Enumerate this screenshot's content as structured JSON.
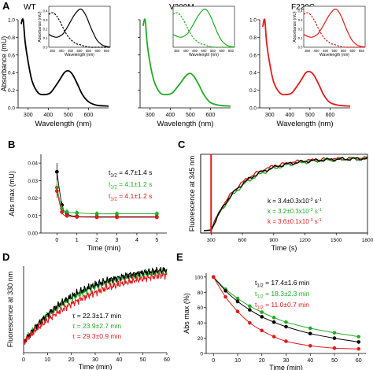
{
  "panels": {
    "A": "A",
    "B": "B",
    "C": "C",
    "D": "D",
    "E": "E"
  },
  "colors": {
    "wt": "#000000",
    "v209m": "#22aa22",
    "f220c": "#e01b1b"
  },
  "chart_data": [
    {
      "id": "A-WT",
      "type": "line",
      "title": "WT",
      "xlabel": "Wavelength (nm)",
      "ylabel": "Absorbance (mU)",
      "xlim": [
        250,
        700
      ],
      "ylim": [
        0,
        1.0
      ],
      "xticks": [
        "300",
        "400",
        "500",
        "600"
      ],
      "yticks": [
        "0.0",
        "0.2",
        "0.4",
        "0.6",
        "0.8",
        "1.0"
      ],
      "series": [
        {
          "x": [
            265,
            275,
            285,
            300,
            320,
            350,
            380,
            410,
            440,
            460,
            480,
            500,
            520,
            545,
            570,
            600,
            640,
            700
          ],
          "y": [
            0.95,
            1.0,
            0.75,
            0.52,
            0.3,
            0.17,
            0.15,
            0.17,
            0.26,
            0.33,
            0.4,
            0.42,
            0.38,
            0.27,
            0.15,
            0.07,
            0.03,
            0.02
          ]
        }
      ],
      "inset": {
        "xlabel": "Wavelength (nm)",
        "ylabel": "Absorbance (mU)",
        "xticks": [
          "350",
          "400",
          "450",
          "500",
          "550",
          "600",
          "650"
        ],
        "yticks": [
          "0.0",
          "0.1",
          "0.2",
          "0.3",
          "0.4"
        ],
        "xlim": [
          330,
          670
        ],
        "ylim": [
          0,
          0.45
        ],
        "solid": {
          "x": [
            330,
            350,
            370,
            390,
            410,
            430,
            450,
            470,
            490,
            505,
            520,
            540,
            560,
            580,
            600,
            630,
            670
          ],
          "y": [
            0.14,
            0.12,
            0.11,
            0.12,
            0.15,
            0.21,
            0.28,
            0.35,
            0.4,
            0.42,
            0.4,
            0.33,
            0.23,
            0.14,
            0.07,
            0.02,
            0.0
          ]
        },
        "dashed": {
          "x": [
            330,
            345,
            360,
            375,
            390,
            405,
            420,
            440,
            460,
            480,
            500,
            530,
            560,
            600,
            670
          ],
          "y": [
            0.36,
            0.38,
            0.37,
            0.34,
            0.29,
            0.23,
            0.17,
            0.11,
            0.07,
            0.04,
            0.03,
            0.01,
            0.0,
            0.0,
            0.0
          ]
        }
      }
    },
    {
      "id": "A-V209M",
      "type": "line",
      "title": "V209M",
      "xlabel": "Wavelength (nm)",
      "ylabel": "",
      "xlim": [
        250,
        700
      ],
      "ylim": [
        0,
        1.0
      ],
      "xticks": [
        "300",
        "400",
        "500",
        "600"
      ],
      "yticks": [],
      "series": [
        {
          "x": [
            265,
            275,
            285,
            300,
            320,
            350,
            380,
            410,
            440,
            460,
            480,
            500,
            520,
            545,
            570,
            600,
            640,
            700
          ],
          "y": [
            0.93,
            1.0,
            0.74,
            0.5,
            0.3,
            0.17,
            0.15,
            0.17,
            0.25,
            0.31,
            0.37,
            0.39,
            0.35,
            0.25,
            0.14,
            0.06,
            0.03,
            0.02
          ]
        }
      ],
      "inset": {
        "xlabel": "Wavelength (nm)",
        "ylabel": "",
        "xticks": [
          "350",
          "400",
          "450",
          "500",
          "550",
          "600",
          "650"
        ],
        "yticks": [],
        "xlim": [
          330,
          670
        ],
        "ylim": [
          0,
          0.45
        ],
        "solid": {
          "x": [
            330,
            350,
            370,
            390,
            410,
            430,
            450,
            470,
            490,
            505,
            520,
            540,
            560,
            580,
            600,
            630,
            670
          ],
          "y": [
            0.14,
            0.12,
            0.11,
            0.12,
            0.15,
            0.21,
            0.28,
            0.35,
            0.4,
            0.42,
            0.4,
            0.33,
            0.23,
            0.14,
            0.07,
            0.02,
            0.0
          ]
        },
        "dashed": {
          "x": [
            330,
            345,
            360,
            375,
            390,
            405,
            420,
            440,
            460,
            480,
            500,
            530,
            560,
            600,
            670
          ],
          "y": [
            0.36,
            0.38,
            0.37,
            0.34,
            0.29,
            0.23,
            0.17,
            0.11,
            0.07,
            0.04,
            0.03,
            0.01,
            0.0,
            0.0,
            0.0
          ]
        }
      }
    },
    {
      "id": "A-F220C",
      "type": "line",
      "title": "F220C",
      "xlabel": "Wavelength (nm)",
      "ylabel": "Absorbance (mU)",
      "xlim": [
        250,
        700
      ],
      "ylim": [
        0,
        1.0
      ],
      "xticks": [
        "300",
        "400",
        "500",
        "600"
      ],
      "yticks": [
        "0.0",
        "0.2",
        "0.4",
        "0.6",
        "0.8",
        "1.0"
      ],
      "series": [
        {
          "x": [
            265,
            275,
            285,
            300,
            320,
            350,
            380,
            410,
            440,
            460,
            480,
            500,
            520,
            545,
            570,
            600,
            640,
            700
          ],
          "y": [
            0.92,
            1.0,
            0.73,
            0.5,
            0.29,
            0.17,
            0.15,
            0.17,
            0.26,
            0.33,
            0.4,
            0.41,
            0.37,
            0.26,
            0.14,
            0.06,
            0.03,
            0.02
          ]
        }
      ],
      "inset": {
        "xlabel": "Wavelength (nm)",
        "ylabel": "Absorbance (mU)",
        "xticks": [
          "350",
          "400",
          "450",
          "500",
          "550",
          "600",
          "650"
        ],
        "yticks": [
          "0.0",
          "0.1",
          "0.2",
          "0.3",
          "0.4"
        ],
        "xlim": [
          330,
          670
        ],
        "ylim": [
          0,
          0.45
        ],
        "solid": {
          "x": [
            330,
            350,
            370,
            390,
            410,
            430,
            450,
            470,
            490,
            505,
            520,
            540,
            560,
            580,
            600,
            630,
            670
          ],
          "y": [
            0.14,
            0.12,
            0.11,
            0.12,
            0.15,
            0.21,
            0.28,
            0.35,
            0.4,
            0.42,
            0.4,
            0.33,
            0.23,
            0.14,
            0.07,
            0.02,
            0.0
          ]
        },
        "dashed": {
          "x": [
            330,
            345,
            360,
            375,
            390,
            405,
            420,
            440,
            460,
            480,
            500,
            530,
            560,
            600,
            670
          ],
          "y": [
            0.36,
            0.38,
            0.37,
            0.34,
            0.29,
            0.23,
            0.17,
            0.11,
            0.07,
            0.04,
            0.03,
            0.01,
            0.0,
            0.0,
            0.0
          ]
        }
      }
    },
    {
      "id": "B",
      "type": "scatter",
      "xlabel": "Time (min)",
      "ylabel": "Abs max (mU)",
      "xlim": [
        -0.8,
        5.5
      ],
      "ylim": [
        0.08,
        0.045
      ],
      "yrange": [
        0.08,
        0.045
      ],
      "xticks": [
        "0",
        "1",
        "2",
        "3",
        "4",
        "5"
      ],
      "yticks": [
        "0.00",
        "0.01",
        "0.02",
        "0.03",
        "0.04"
      ],
      "yticks_values": [
        0.0,
        0.01,
        0.02,
        0.03,
        0.04
      ],
      "y_axis": [
        0.0,
        0.045
      ],
      "x": [
        0,
        0.25,
        0.5,
        1,
        2,
        3,
        5
      ],
      "series": [
        {
          "color": "#000000",
          "values": [
            0.035,
            0.016,
            0.011,
            0.0095,
            0.0093,
            0.0093,
            0.0093
          ],
          "err": [
            0.005,
            0.002,
            0.001,
            0.001,
            0.0008,
            0.0008,
            0.0008
          ]
        },
        {
          "color": "#22aa22",
          "values": [
            0.026,
            0.014,
            0.012,
            0.0115,
            0.011,
            0.011,
            0.011
          ],
          "err": [
            0.004,
            0.002,
            0.002,
            0.0015,
            0.0015,
            0.0015,
            0.0015
          ]
        },
        {
          "color": "#e01b1b",
          "values": [
            0.024,
            0.012,
            0.0098,
            0.0092,
            0.009,
            0.009,
            0.009
          ],
          "err": [
            0.004,
            0.0015,
            0.001,
            0.0008,
            0.0008,
            0.0008,
            0.0008
          ]
        }
      ],
      "annotations": [
        {
          "pre": "t",
          "sub": "1/2",
          "post": " = 4.7±1.4 s",
          "color": "#000000"
        },
        {
          "pre": "t",
          "sub": "1/2",
          "post": " = 4.1±1.2 s",
          "color": "#22aa22"
        },
        {
          "pre": "t",
          "sub": "1/2",
          "post": " = 4.1±1.2 s",
          "color": "#e01b1b"
        }
      ]
    },
    {
      "id": "C",
      "type": "line",
      "xlabel": "Time (s)",
      "ylabel": "Fluorescence at 345 nm",
      "xlim": [
        200,
        1800
      ],
      "ylim": [
        0,
        1.05
      ],
      "xticks": [
        "300",
        "600",
        "900",
        "1200",
        "1500",
        "1800"
      ],
      "yticks": [],
      "marker_x": 300,
      "series": [
        {
          "color": "#e01b1b",
          "k": 3.6
        },
        {
          "color": "#22aa22",
          "k": 3.2
        },
        {
          "color": "#000000",
          "k": 3.4
        }
      ],
      "annotations": [
        {
          "text": "k = 3.4±0.3x10",
          "sup": "-3",
          "unit": " s",
          "sup2": "-1",
          "color": "#000000"
        },
        {
          "text": "k = 3.2±0.3x10",
          "sup": "-3",
          "unit": " s",
          "sup2": "-1",
          "color": "#22aa22"
        },
        {
          "text": "k = 3.6±0.1x10",
          "sup": "-3",
          "unit": " s",
          "sup2": "-1",
          "color": "#e01b1b"
        }
      ]
    },
    {
      "id": "D",
      "type": "line",
      "xlabel": "Time (min)",
      "ylabel": "Fluorescence at 330 nm",
      "xlim": [
        0,
        60
      ],
      "ylim": [
        0,
        1.05
      ],
      "xticks": [
        "0",
        "10",
        "20",
        "30",
        "40",
        "50",
        "60"
      ],
      "yticks": [],
      "series": [
        {
          "color": "#22aa22",
          "tau": 23.9
        },
        {
          "color": "#000000",
          "tau": 22.3
        },
        {
          "color": "#e01b1b",
          "tau": 29.3
        }
      ],
      "annotations": [
        {
          "pre": "τ",
          "post": " = 22.3±1.7 min",
          "color": "#000000"
        },
        {
          "pre": "τ",
          "post": " = 23.9±2.7 min",
          "color": "#22aa22"
        },
        {
          "pre": "τ",
          "post": " = 29.3±0.9 min",
          "color": "#e01b1b"
        }
      ]
    },
    {
      "id": "E",
      "type": "scatter",
      "xlabel": "Time (min)",
      "ylabel": "Abs max (%)",
      "xlim": [
        -3,
        63
      ],
      "ylim": [
        0,
        105
      ],
      "xticks": [
        "0",
        "10",
        "20",
        "30",
        "40",
        "50",
        "60"
      ],
      "yticks": [
        "0",
        "20",
        "40",
        "60",
        "80",
        "100"
      ],
      "x": [
        0,
        5,
        10,
        15,
        20,
        25,
        30,
        40,
        50,
        60
      ],
      "series": [
        {
          "color": "#22aa22",
          "values": [
            100,
            84,
            72,
            62,
            54,
            47,
            41,
            33,
            27,
            22
          ]
        },
        {
          "color": "#000000",
          "values": [
            100,
            82,
            68,
            57,
            48,
            41,
            35,
            26,
            20,
            15
          ]
        },
        {
          "color": "#e01b1b",
          "values": [
            100,
            74,
            55,
            40,
            30,
            22,
            16,
            10,
            7,
            6
          ]
        }
      ],
      "annotations": [
        {
          "pre": "t",
          "sub": "1/2",
          "post": " = 17.4±1.6 min",
          "color": "#000000"
        },
        {
          "pre": "t",
          "sub": "1/2",
          "post": " = 18.3±2.3 min",
          "color": "#22aa22"
        },
        {
          "pre": "t",
          "sub": "1/2",
          "post": " = 11.0±0.7 min",
          "color": "#e01b1b"
        }
      ]
    }
  ]
}
